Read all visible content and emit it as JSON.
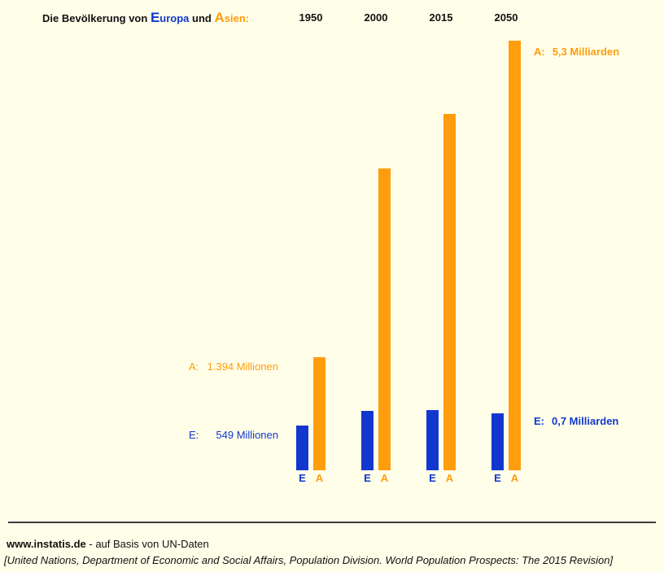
{
  "title": {
    "prefix": "Die Bevölkerung von",
    "europe_initial": "E",
    "europe_rest": "uropa",
    "conjunction": "und",
    "asia_initial": "A",
    "asia_rest": "sien:"
  },
  "chart_data": {
    "type": "bar",
    "categories": [
      "1950",
      "2000",
      "2015",
      "2050"
    ],
    "series": [
      {
        "name": "E",
        "label": "Europa",
        "color": "#1237cf",
        "values_in_millions": [
          549,
          730,
          740,
          700
        ]
      },
      {
        "name": "A",
        "label": "Asien",
        "color": "#ff9d0d",
        "values_in_millions": [
          1394,
          3720,
          4400,
          5300
        ]
      }
    ],
    "unit": "Millionen",
    "ylim_millions": [
      0,
      5300
    ],
    "grid": false,
    "axes_hidden": true,
    "legend": "letters E/A below each bar pair",
    "annotations": [
      {
        "id": "asia-1950",
        "label": "A:",
        "value": "1.394 Millionen",
        "color": "#ff9d0d",
        "bold": false
      },
      {
        "id": "europe-1950",
        "label": "E:",
        "value": "549 Millionen",
        "color": "#1237cf",
        "bold": false
      },
      {
        "id": "asia-2050",
        "label": "A:",
        "value": "5,3 Milliarden",
        "color": "#ff9d0d",
        "bold": true
      },
      {
        "id": "europe-2050",
        "label": "E:",
        "value": "0,7 Milliarden",
        "color": "#1237cf",
        "bold": true
      }
    ]
  },
  "footer": {
    "source_site": "www.instatis.de",
    "source_suffix": " - auf Basis von UN-Daten",
    "citation": "[United Nations, Department of Economic and Social Affairs, Population Division. World Population Prospects: The 2015 Revision]"
  },
  "colors": {
    "background": "#ffffe9",
    "europe": "#1237cf",
    "asia": "#ff9d0d",
    "text": "#111111"
  }
}
